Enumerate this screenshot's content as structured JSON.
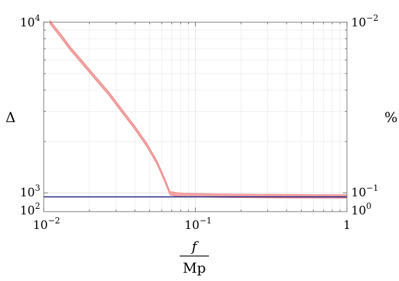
{
  "chart_data": {
    "type": "line",
    "title": "",
    "xlabel": {
      "numerator": "f",
      "denominator": "Mp"
    },
    "ylabel_left": "Δ",
    "ylabel_right": "%",
    "x_scale": "log",
    "xlim": [
      0.01,
      1
    ],
    "y_left_scale": "log",
    "y_left_ticks": [
      {
        "value": 10000,
        "mantissa": "10",
        "exponent": "4"
      },
      {
        "value": 1000,
        "mantissa": "10",
        "exponent": "3"
      },
      {
        "value": 100,
        "mantissa": "10",
        "exponent": "2"
      }
    ],
    "y_right_ticks": [
      {
        "label_value": 0.01,
        "mantissa": "10",
        "exponent": "−2"
      },
      {
        "label_value": 0.1,
        "mantissa": "10",
        "exponent": "−1"
      },
      {
        "label_value": 1,
        "mantissa": "10",
        "exponent": "0"
      }
    ],
    "x_ticks": [
      {
        "value": 0.01,
        "mantissa": "10",
        "exponent": "−2"
      },
      {
        "value": 0.1,
        "mantissa": "10",
        "exponent": "−1"
      },
      {
        "value": 1,
        "mantissa": "1",
        "exponent": ""
      }
    ],
    "grid": true,
    "series": [
      {
        "color": "#e87a7a",
        "fill": "#f4a6a6",
        "band": true,
        "x": [
          0.011,
          0.013,
          0.015,
          0.018,
          0.022,
          0.027,
          0.033,
          0.04,
          0.048,
          0.056,
          0.063,
          0.068,
          0.075,
          0.085,
          0.1,
          0.15,
          0.25,
          0.4,
          0.6,
          1.0
        ],
        "y": [
          10000,
          8300,
          7000,
          5800,
          4700,
          3800,
          3000,
          2400,
          1900,
          1500,
          1180,
          960,
          820,
          760,
          730,
          690,
          660,
          640,
          630,
          625
        ]
      },
      {
        "color": "#2a2a8a",
        "band": false,
        "x": [
          0.01,
          1.0
        ],
        "y": [
          590,
          590
        ]
      }
    ]
  }
}
